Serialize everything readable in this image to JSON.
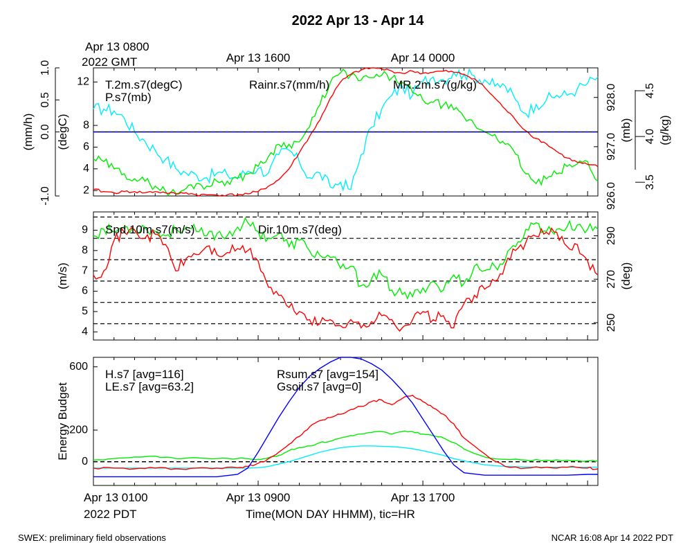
{
  "title": "2022 Apr 13 - Apr 14",
  "footer": {
    "left": "SWEX: preliminary field observations",
    "right": "NCAR 16:08 Apr 14 2022 PDT"
  },
  "top_time_axis": {
    "origin_label_1": "Apr 13 0800",
    "origin_label_2": "2022 GMT",
    "labels": [
      {
        "text": "Apr 13 1600",
        "x": 8
      },
      {
        "text": "Apr 14 0000",
        "x": 16
      }
    ]
  },
  "bottom_time_axis": {
    "origin_label_1": "Apr 13 0100",
    "origin_label_2": "2022 PDT",
    "labels": [
      {
        "text": "Apr 13 0900",
        "x": 8
      },
      {
        "text": "Apr 13 1700",
        "x": 16
      }
    ],
    "xlabel": "Time(MON DAY HHMM), tic=HR"
  },
  "colors": {
    "red": "#ff0000",
    "green": "#00ee00",
    "blue": "#0000ff",
    "cyan": "#00eeff",
    "black": "#000000"
  },
  "chart_data": [
    {
      "type": "line",
      "panel": "thermo",
      "xlim": [
        0,
        24.5
      ],
      "axes": {
        "rain": {
          "label": "(mm/h)",
          "ylim": [
            -1,
            1
          ],
          "ticks": [
            "-1.0",
            "0.0",
            "0.5",
            "1.0"
          ],
          "side": "left-outer"
        },
        "temp": {
          "label": "(degC)",
          "ylim": [
            1.5,
            13.3
          ],
          "ticks": [
            "2",
            "4",
            "6",
            "8",
            "12"
          ],
          "side": "left-inner"
        },
        "press": {
          "label": "(mb)",
          "ylim": [
            926.0,
            928.6
          ],
          "ticks": [
            "926.0",
            "927.0",
            "928.0"
          ],
          "side": "right-inner"
        },
        "mr": {
          "label": "(g/kg)",
          "ylim": [
            3.35,
            4.75
          ],
          "ticks": [
            "3.5",
            "4.0",
            "4.5"
          ],
          "side": "right-outer"
        }
      },
      "series": [
        {
          "name": "T.2m.s7(degC)",
          "color": "red",
          "axis": "temp",
          "x": [
            0,
            0.5,
            1,
            1.5,
            2,
            2.5,
            3,
            3.5,
            4,
            4.5,
            5,
            5.5,
            6,
            6.5,
            7,
            7.5,
            8,
            8.5,
            9,
            9.5,
            10,
            10.5,
            11,
            11.5,
            12,
            12.5,
            13,
            13.5,
            14,
            14.5,
            15,
            15.5,
            16,
            16.5,
            17,
            17.5,
            18,
            18.5,
            19,
            19.5,
            20,
            20.5,
            21,
            21.5,
            22,
            22.5,
            23,
            23.5,
            24,
            24.5
          ],
          "y": [
            2.1,
            1.9,
            1.8,
            1.9,
            1.9,
            1.8,
            1.9,
            1.8,
            1.7,
            1.8,
            1.6,
            1.6,
            1.6,
            1.6,
            1.6,
            1.7,
            1.9,
            2.4,
            3.0,
            4.0,
            5.5,
            7.0,
            8.5,
            10.5,
            12.0,
            12.7,
            13.1,
            13.3,
            13.2,
            13.0,
            12.8,
            13.0,
            12.8,
            12.9,
            13.0,
            12.9,
            12.7,
            12.3,
            11.5,
            10.5,
            9.5,
            8.5,
            7.5,
            6.8,
            6.3,
            5.6,
            5.0,
            4.6,
            4.4,
            4.2
          ]
        },
        {
          "name": "P.s7(mb)",
          "color": "green",
          "axis": "press",
          "x": [
            0,
            0.5,
            1,
            1.5,
            2,
            2.5,
            3,
            3.5,
            4,
            4.5,
            5,
            5.5,
            6,
            6.5,
            7,
            7.5,
            8,
            8.5,
            9,
            9.5,
            10,
            10.5,
            11,
            11.5,
            12,
            12.5,
            13,
            13.5,
            14,
            14.5,
            15,
            15.5,
            16,
            16.5,
            17,
            17.5,
            18,
            18.5,
            19,
            19.5,
            20,
            20.5,
            21,
            21.5,
            22,
            22.5,
            23,
            23.5,
            24,
            24.5
          ],
          "y": [
            926.75,
            926.7,
            926.55,
            926.45,
            926.35,
            926.3,
            926.2,
            926.1,
            926.05,
            926.15,
            926.25,
            926.2,
            926.3,
            926.3,
            926.35,
            926.45,
            926.6,
            926.8,
            927.05,
            927.05,
            927.1,
            927.4,
            927.85,
            928.3,
            928.5,
            928.45,
            928.35,
            928.4,
            928.45,
            928.4,
            928.3,
            928.1,
            927.95,
            927.9,
            927.85,
            927.75,
            927.6,
            927.45,
            927.3,
            927.25,
            927.05,
            926.85,
            926.45,
            926.25,
            926.35,
            926.45,
            926.6,
            926.65,
            926.7,
            926.3
          ]
        },
        {
          "name": "Rainr.s7(mm/h)",
          "color": "blue",
          "axis": "rain",
          "x": [
            0,
            24.5
          ],
          "y": [
            0,
            0
          ]
        },
        {
          "name": "MR.2m.s7(g/kg)",
          "color": "cyan",
          "axis": "mr",
          "x": [
            0,
            0.5,
            1,
            1.5,
            2,
            2.5,
            3,
            3.5,
            4,
            4.5,
            5,
            5.5,
            6,
            6.5,
            7,
            7.5,
            8,
            8.5,
            9,
            9.5,
            10,
            10.5,
            11,
            11.5,
            12,
            12.5,
            13,
            13.5,
            14,
            14.5,
            15,
            15.5,
            16,
            16.5,
            17,
            17.5,
            18,
            18.5,
            19,
            19.5,
            20,
            20.5,
            21,
            21.5,
            22,
            22.5,
            23,
            23.5,
            24,
            24.5
          ],
          "y": [
            4.3,
            4.3,
            4.28,
            4.2,
            4.05,
            3.95,
            3.85,
            3.75,
            3.65,
            3.6,
            3.58,
            3.55,
            3.6,
            3.58,
            3.55,
            3.62,
            3.65,
            3.6,
            3.8,
            3.85,
            3.72,
            3.55,
            3.6,
            3.45,
            3.5,
            3.42,
            3.8,
            4.1,
            4.3,
            4.45,
            4.55,
            4.45,
            4.6,
            4.65,
            4.62,
            4.7,
            4.68,
            4.66,
            4.62,
            4.55,
            4.55,
            4.4,
            4.25,
            4.35,
            4.4,
            4.45,
            4.45,
            4.52,
            4.58,
            4.65
          ]
        }
      ]
    },
    {
      "type": "line",
      "panel": "wind",
      "xlim": [
        0,
        24.5
      ],
      "hlines": [
        4.4,
        5.45,
        6.5,
        7.55,
        8.6,
        9.65
      ],
      "axes": {
        "spd": {
          "label": "(m/s)",
          "ylim": [
            3.6,
            9.9
          ],
          "ticks": [
            "4",
            "5",
            "6",
            "7",
            "8",
            "9"
          ],
          "side": "left"
        },
        "dir": {
          "label": "(deg)",
          "ylim": [
            242,
            301
          ],
          "ticks": [
            "250",
            "270",
            "290"
          ],
          "side": "right"
        }
      },
      "series": [
        {
          "name": "Spd.10m.s7(m/s)",
          "color": "red",
          "axis": "spd",
          "x": [
            0,
            0.5,
            1,
            1.5,
            2,
            2.5,
            3,
            3.5,
            4,
            4.5,
            5,
            5.5,
            6,
            6.5,
            7,
            7.5,
            8,
            8.5,
            9,
            9.5,
            10,
            10.5,
            11,
            11.5,
            12,
            12.5,
            13,
            13.5,
            14,
            14.5,
            15,
            15.5,
            16,
            16.5,
            17,
            17.5,
            18,
            18.5,
            19,
            19.5,
            20,
            20.5,
            21,
            21.5,
            22,
            22.5,
            23,
            23.5,
            24,
            24.5
          ],
          "y": [
            6.8,
            7.0,
            8.5,
            8.9,
            9.0,
            8.6,
            8.8,
            8.3,
            7.0,
            7.6,
            7.8,
            8.2,
            7.8,
            7.9,
            8.1,
            8.0,
            7.5,
            6.2,
            5.8,
            5.2,
            5.0,
            4.6,
            4.4,
            4.6,
            4.3,
            4.6,
            4.2,
            4.5,
            4.8,
            4.6,
            4.2,
            4.6,
            5.0,
            4.6,
            4.8,
            4.2,
            5.4,
            5.8,
            6.1,
            6.5,
            7.3,
            8.0,
            8.4,
            8.7,
            8.9,
            8.9,
            8.2,
            8.3,
            7.5,
            6.8
          ]
        },
        {
          "name": "Dir.10m.s7(deg)",
          "color": "green",
          "axis": "dir",
          "x": [
            0,
            0.5,
            1,
            1.5,
            2,
            2.5,
            3,
            3.5,
            4,
            4.5,
            5,
            5.5,
            6,
            6.5,
            7,
            7.5,
            8,
            8.5,
            9,
            9.5,
            10,
            10.5,
            11,
            11.5,
            12,
            12.5,
            13,
            13.5,
            14,
            14.5,
            15,
            15.5,
            16,
            16.5,
            17,
            17.5,
            18,
            18.5,
            19,
            19.5,
            20,
            20.5,
            21,
            21.5,
            22,
            22.5,
            23,
            23.5,
            24,
            24.5
          ],
          "y": [
            290,
            293,
            292,
            294,
            293,
            294,
            292,
            290,
            293,
            294,
            292,
            290,
            291,
            290,
            294,
            296,
            292,
            289,
            291,
            285,
            288,
            283,
            281,
            280,
            275,
            276,
            267,
            270,
            272,
            265,
            263,
            262,
            266,
            269,
            265,
            272,
            268,
            276,
            274,
            276,
            279,
            285,
            293,
            296,
            292,
            293,
            294,
            295,
            293,
            293
          ]
        }
      ]
    },
    {
      "type": "line",
      "panel": "energy",
      "xlim": [
        0,
        24.5
      ],
      "ylabel": "Energy Budget",
      "ylim": [
        -150,
        660
      ],
      "yticks": [
        "0",
        "200",
        "600"
      ],
      "hline": 0,
      "series": [
        {
          "name": "H.s7 [avg=116]",
          "color": "red",
          "x": [
            0,
            1,
            2,
            3,
            4,
            5,
            6,
            7,
            7.5,
            8,
            8.5,
            9,
            9.5,
            10,
            10.5,
            11,
            11.5,
            12,
            12.5,
            13,
            13.5,
            14,
            14.5,
            15,
            15.5,
            16,
            16.5,
            17,
            17.5,
            18,
            19,
            20,
            21,
            22,
            23,
            24,
            24.5
          ],
          "y": [
            -40,
            -40,
            -45,
            -40,
            -45,
            -40,
            -40,
            -38,
            -30,
            -10,
            20,
            60,
            110,
            160,
            220,
            260,
            280,
            300,
            330,
            350,
            380,
            390,
            360,
            400,
            420,
            380,
            340,
            300,
            240,
            150,
            50,
            -30,
            -40,
            -35,
            -35,
            -40,
            -45
          ]
        },
        {
          "name": "LE.s7 [avg=63.2]",
          "color": "green",
          "x": [
            0,
            1,
            2,
            3,
            4,
            5,
            6,
            7,
            7.5,
            8,
            8.5,
            9,
            9.5,
            10,
            10.5,
            11,
            11.5,
            12,
            12.5,
            13,
            13.5,
            14,
            14.5,
            15,
            15.5,
            16,
            16.5,
            17,
            17.5,
            18,
            19,
            20,
            21,
            22,
            23,
            24,
            24.5
          ],
          "y": [
            10,
            20,
            30,
            35,
            20,
            25,
            20,
            20,
            20,
            15,
            25,
            40,
            70,
            90,
            100,
            120,
            130,
            150,
            165,
            175,
            185,
            190,
            175,
            190,
            190,
            175,
            165,
            150,
            120,
            80,
            30,
            15,
            10,
            10,
            10,
            5,
            5
          ]
        },
        {
          "name": "Rsum.s7 [avg=154]",
          "color": "blue",
          "x": [
            0,
            1,
            2,
            3,
            4,
            5,
            6,
            7,
            7.5,
            8,
            8.5,
            9,
            9.5,
            10,
            10.5,
            11,
            11.5,
            12,
            12.5,
            13,
            13.5,
            14,
            14.5,
            15,
            15.5,
            16,
            16.5,
            17,
            17.5,
            18,
            19,
            20,
            21,
            22,
            23,
            24,
            24.5
          ],
          "y": [
            -95,
            -95,
            -95,
            -95,
            -95,
            -95,
            -95,
            -80,
            -40,
            60,
            170,
            280,
            380,
            470,
            540,
            590,
            630,
            660,
            660,
            650,
            620,
            580,
            520,
            450,
            370,
            270,
            170,
            70,
            -20,
            -70,
            -85,
            -85,
            -85,
            -85,
            -85,
            -80,
            -80
          ]
        },
        {
          "name": "Gsoil.s7 [avg=0]",
          "color": "cyan",
          "x": [
            0,
            1,
            2,
            3,
            4,
            5,
            6,
            7,
            7.5,
            8,
            8.5,
            9,
            9.5,
            10,
            10.5,
            11,
            11.5,
            12,
            12.5,
            13,
            13.5,
            14,
            14.5,
            15,
            15.5,
            16,
            16.5,
            17,
            17.5,
            18,
            19,
            20,
            21,
            22,
            23,
            24,
            24.5
          ],
          "y": [
            -40,
            -40,
            -40,
            -40,
            -40,
            -40,
            -40,
            -40,
            -40,
            -38,
            -30,
            -15,
            0,
            20,
            40,
            60,
            75,
            88,
            95,
            100,
            100,
            98,
            95,
            90,
            82,
            70,
            55,
            40,
            20,
            5,
            -20,
            -30,
            -33,
            -35,
            -35,
            -35,
            -35
          ]
        }
      ]
    }
  ]
}
